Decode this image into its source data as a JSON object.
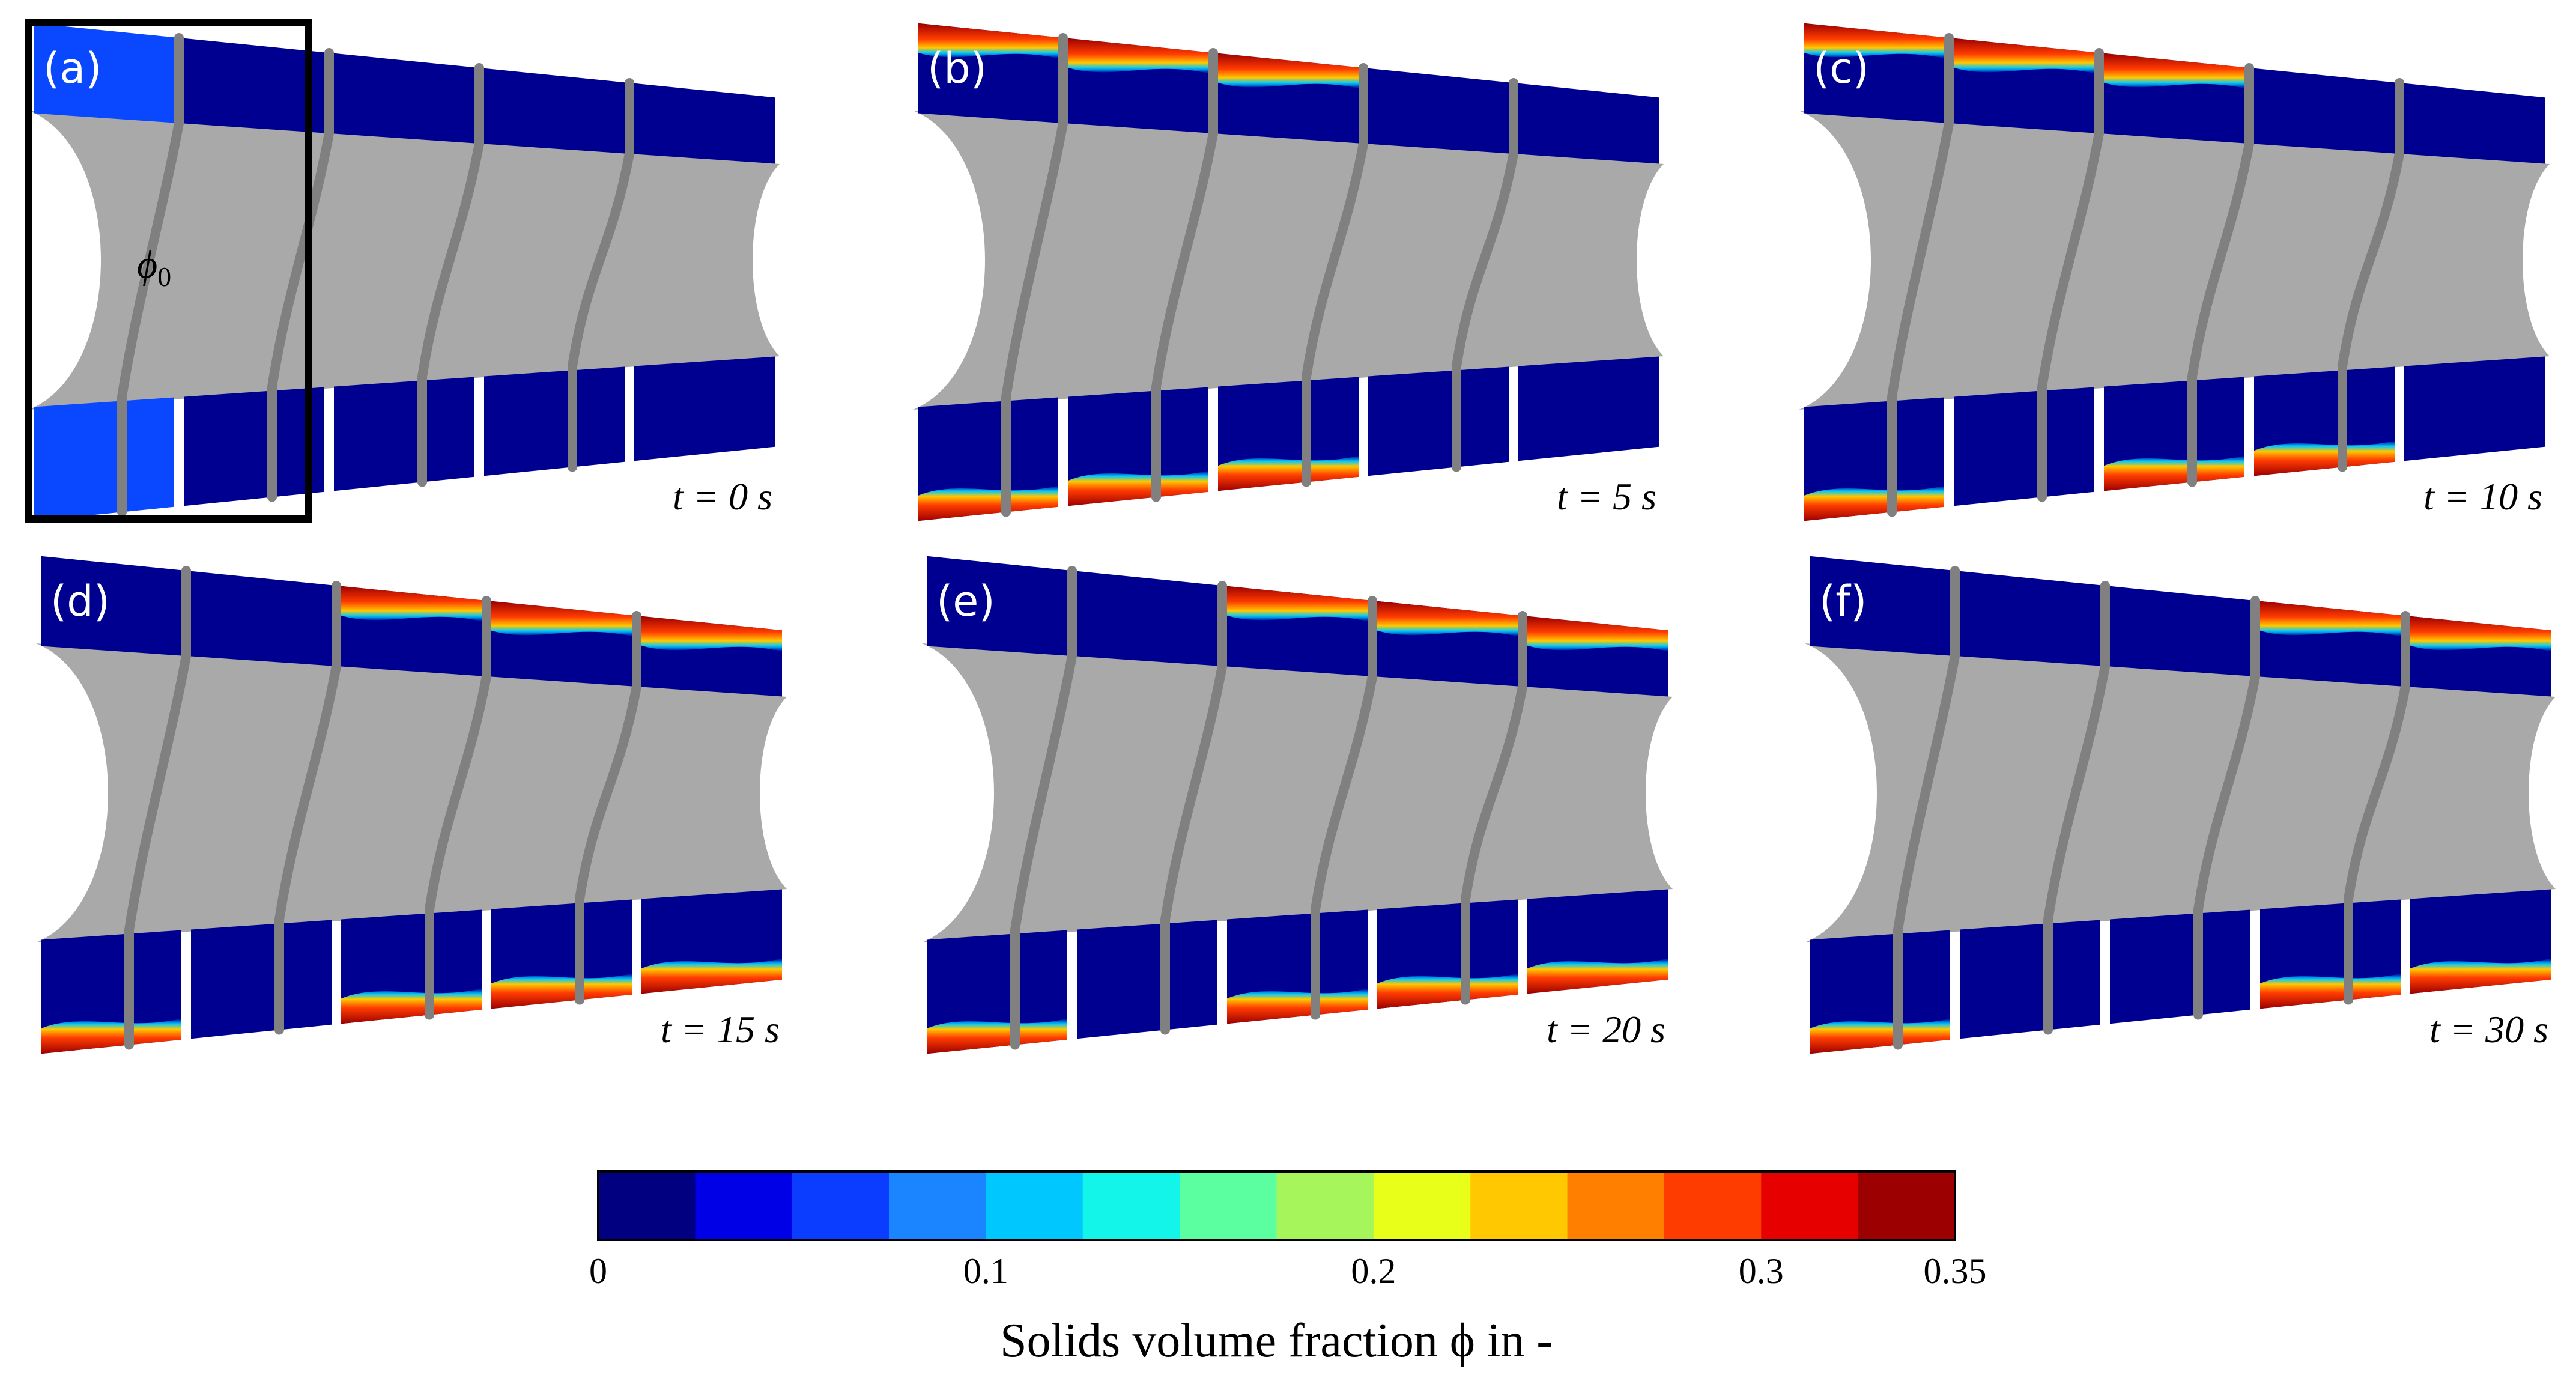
{
  "panels": [
    {
      "tag": "(a)",
      "time": "t = 0 s",
      "deposits": []
    },
    {
      "tag": "(b)",
      "time": "t = 5 s",
      "deposits": [
        {
          "side": "top",
          "chamber": 0,
          "level": 0.3
        },
        {
          "side": "top",
          "chamber": 1,
          "level": 0.33
        },
        {
          "side": "top",
          "chamber": 2,
          "level": 0.3
        },
        {
          "side": "bottom",
          "chamber": 0,
          "level": 0.33
        },
        {
          "side": "bottom",
          "chamber": 1,
          "level": 0.32
        },
        {
          "side": "bottom",
          "chamber": 2,
          "level": 0.3
        }
      ]
    },
    {
      "tag": "(c)",
      "time": "t = 10 s",
      "deposits": [
        {
          "side": "top",
          "chamber": 0,
          "level": 0.3
        },
        {
          "side": "top",
          "chamber": 1,
          "level": 0.35
        },
        {
          "side": "top",
          "chamber": 2,
          "level": 0.32
        },
        {
          "side": "bottom",
          "chamber": 0,
          "level": 0.3
        },
        {
          "side": "bottom",
          "chamber": 2,
          "level": 0.35
        },
        {
          "side": "bottom",
          "chamber": 3,
          "level": 0.3
        }
      ]
    },
    {
      "tag": "(d)",
      "time": "t = 15 s",
      "deposits": [
        {
          "side": "top",
          "chamber": 2,
          "level": 0.35
        },
        {
          "side": "top",
          "chamber": 3,
          "level": 0.34
        },
        {
          "side": "top",
          "chamber": 4,
          "level": 0.28
        },
        {
          "side": "bottom",
          "chamber": 0,
          "level": 0.3
        },
        {
          "side": "bottom",
          "chamber": 2,
          "level": 0.35
        },
        {
          "side": "bottom",
          "chamber": 3,
          "level": 0.34
        },
        {
          "side": "bottom",
          "chamber": 4,
          "level": 0.28
        }
      ]
    },
    {
      "tag": "(e)",
      "time": "t = 20 s",
      "deposits": [
        {
          "side": "top",
          "chamber": 2,
          "level": 0.34
        },
        {
          "side": "top",
          "chamber": 3,
          "level": 0.35
        },
        {
          "side": "top",
          "chamber": 4,
          "level": 0.3
        },
        {
          "side": "bottom",
          "chamber": 0,
          "level": 0.3
        },
        {
          "side": "bottom",
          "chamber": 2,
          "level": 0.35
        },
        {
          "side": "bottom",
          "chamber": 3,
          "level": 0.35
        },
        {
          "side": "bottom",
          "chamber": 4,
          "level": 0.3
        }
      ]
    },
    {
      "tag": "(f)",
      "time": "t = 30 s",
      "deposits": [
        {
          "side": "top",
          "chamber": 3,
          "level": 0.35
        },
        {
          "side": "top",
          "chamber": 4,
          "level": 0.34
        },
        {
          "side": "bottom",
          "chamber": 0,
          "level": 0.28
        },
        {
          "side": "bottom",
          "chamber": 3,
          "level": 0.35
        },
        {
          "side": "bottom",
          "chamber": 4,
          "level": 0.35
        }
      ]
    }
  ],
  "initial_label": "ϕ",
  "initial_label_sub": "0",
  "initial_fill_fraction": 0.05,
  "colorbar": {
    "title": "Solids volume fraction ϕ in -",
    "min": 0,
    "max": 0.35,
    "ticks": [
      {
        "value": 0,
        "label": "0"
      },
      {
        "value": 0.1,
        "label": "0.1"
      },
      {
        "value": 0.2,
        "label": "0.2"
      },
      {
        "value": 0.3,
        "label": "0.3"
      },
      {
        "value": 0.35,
        "label": "0.35"
      }
    ],
    "colors": [
      "#000080",
      "#0000e6",
      "#0a3dff",
      "#1a85ff",
      "#00c8ff",
      "#13f5e8",
      "#5cffa0",
      "#a6f55a",
      "#e8ff1a",
      "#ffc800",
      "#ff8000",
      "#ff3c00",
      "#e60000",
      "#9c0000"
    ]
  },
  "colors": {
    "body": "#a9a9a9",
    "rib": "#808080",
    "empty": "#000090",
    "initial_fill": "#0a48ff",
    "highlight_frame": "#000000"
  }
}
